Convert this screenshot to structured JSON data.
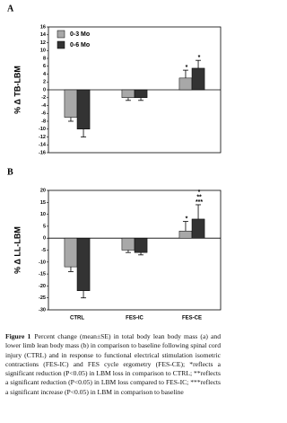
{
  "chart_data": [
    {
      "type": "bar",
      "title": "A",
      "ylabel": "% Δ TB-LBM",
      "categories": [
        null,
        null,
        null
      ],
      "series": [
        {
          "name": "0-3 Mo",
          "color": "#a8a8a8",
          "values": [
            -7,
            -2,
            3
          ],
          "errors": [
            1,
            0.7,
            2
          ],
          "annotations": [
            null,
            null,
            [
              "*"
            ]
          ]
        },
        {
          "name": "0-6 Mo",
          "color": "#333333",
          "values": [
            -10,
            -2,
            5.5
          ],
          "errors": [
            2,
            0.7,
            2
          ],
          "annotations": [
            null,
            null,
            [
              "*"
            ]
          ]
        }
      ],
      "ylim": [
        -16,
        16
      ],
      "yticks": [
        -16,
        -14,
        -12,
        -10,
        -8,
        -6,
        -4,
        -2,
        0,
        2,
        4,
        6,
        8,
        10,
        12,
        14,
        16
      ],
      "grid": false,
      "legend": "upper left"
    },
    {
      "type": "bar",
      "title": "B",
      "ylabel": "% Δ LL-LBM",
      "categories": [
        "CTRL",
        "FES-IC",
        "FES-CE"
      ],
      "series": [
        {
          "name": "0-3 Mo",
          "color": "#a8a8a8",
          "values": [
            -12,
            -5,
            3
          ],
          "errors": [
            2,
            1,
            4
          ],
          "annotations": [
            null,
            null,
            [
              "*"
            ]
          ]
        },
        {
          "name": "0-6 Mo",
          "color": "#333333",
          "values": [
            -22,
            -6,
            8
          ],
          "errors": [
            3,
            1,
            6
          ],
          "annotations": [
            null,
            null,
            [
              "*",
              "**",
              "***"
            ]
          ]
        }
      ],
      "ylim": [
        -30,
        20
      ],
      "yticks": [
        -30,
        -25,
        -20,
        -15,
        -10,
        -5,
        0,
        5,
        10,
        15,
        20
      ],
      "grid": false
    }
  ],
  "caption": {
    "label": "Figure 1",
    "text": "Percent change (mean±SE) in total body lean body mass (a) and lower limb lean body mass (b) in comparison to baseline following spinal cord injury (CTRL) and in response to functional electrical stimulation isometric contractions (FES-IC) and FES cycle ergometry (FES-CE); *reflects a significant reduction (P<0.05) in LBM loss in comparison to CTRL; **reflects a significant reduction (P<0.05) in LBM loss compared to FES-IC; ***reflects a significant increase (P<0.05) in LBM in comparison to baseline"
  }
}
